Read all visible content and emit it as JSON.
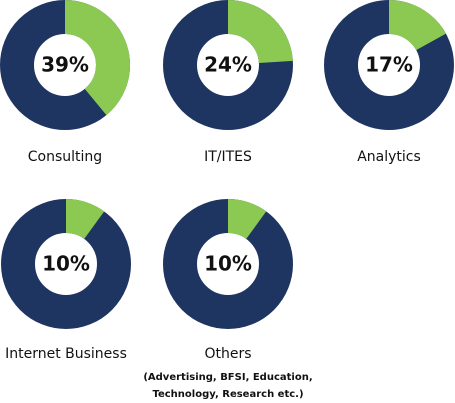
{
  "chart_data": [
    {
      "type": "donut",
      "title": "Consulting",
      "values": [
        39
      ],
      "value_labels": [
        "39%"
      ],
      "color": "#8cc953",
      "track_color": "#1e3461"
    },
    {
      "type": "donut",
      "title": "IT/ITES",
      "values": [
        24
      ],
      "value_labels": [
        "24%"
      ],
      "color": "#8cc953",
      "track_color": "#1e3461"
    },
    {
      "type": "donut",
      "title": "Analytics",
      "values": [
        17
      ],
      "value_labels": [
        "17%"
      ],
      "color": "#8cc953",
      "track_color": "#1e3461"
    },
    {
      "type": "donut",
      "title": "Internet Business",
      "values": [
        10
      ],
      "value_labels": [
        "10%"
      ],
      "color": "#8cc953",
      "track_color": "#1e3461"
    },
    {
      "type": "donut",
      "title": "Others",
      "subtitle": [
        "(Advertising, BFSI, Education,",
        "Technology, Research etc.)"
      ],
      "values": [
        10
      ],
      "value_labels": [
        "10%"
      ],
      "color": "#8cc953",
      "track_color": "#1e3461"
    }
  ]
}
